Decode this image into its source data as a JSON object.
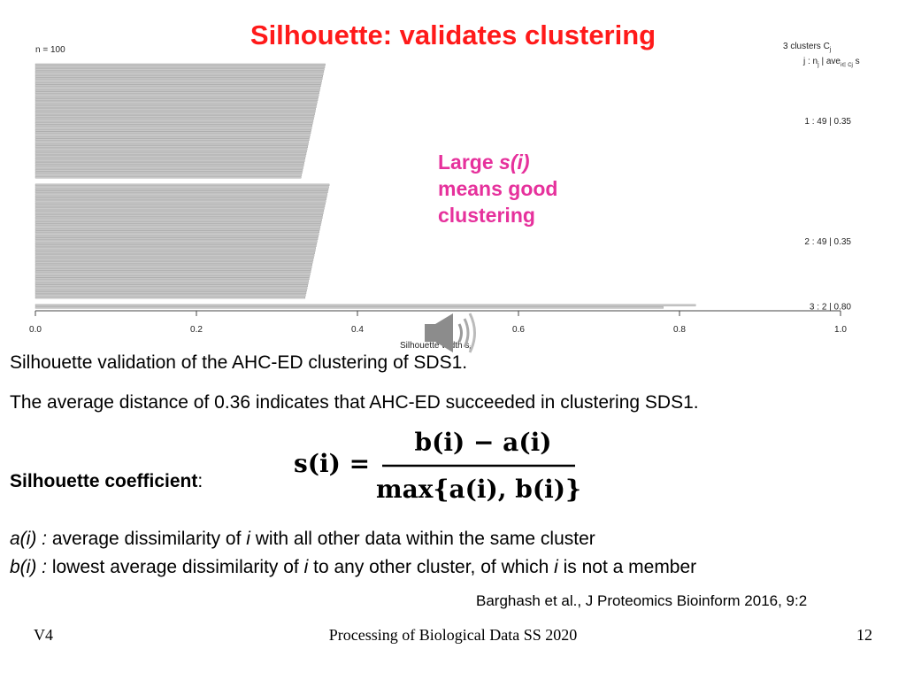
{
  "slide": {
    "title": "Silhouette: validates clustering",
    "callout": {
      "prefix": "Large ",
      "emph": "s(i)",
      "line2": "means good",
      "line3": "clustering"
    },
    "caption1": "Silhouette validation of the AHC-ED clustering of SDS1.",
    "caption2": "The average distance of 0.36 indicates that AHC-ED succeeded in clustering SDS1.",
    "coef_label": "Silhouette coefficient",
    "coef_colon": ":",
    "formula": {
      "lhs": "s(i) =",
      "numerator": "b(i) − a(i)",
      "denominator": "max{a(i), b(i)}"
    },
    "def_a": {
      "term": "a(i) :",
      "text1": " average dissimilarity of ",
      "var": "i",
      "text2": " with all other data within the same cluster"
    },
    "def_b": {
      "term": "b(i) :",
      "text1": " lowest average dissimilarity of ",
      "var": "i",
      "text2": " to any other cluster, of which ",
      "var2": "i",
      "text3": " is not a member"
    },
    "reference": "Barghash et al., J Proteomics Bioinform 2016, 9:2",
    "footer_left": "V4",
    "footer_center": "Processing of Biological Data SS 2020",
    "footer_right": "12",
    "speaker_icon": "speaker-icon"
  },
  "chart_data": {
    "type": "bar",
    "orientation": "horizontal",
    "n_label": "n = 100",
    "legend_header1": "3  clusters  C",
    "legend_header1_sub": "j",
    "legend_header2": "j :  n",
    "legend_header2_sub": "j",
    "legend_header2_rest": " | ave",
    "legend_header2_sub2": "i∈ Cj",
    "legend_header2_tail": " s",
    "xlabel": "Silhouette width s",
    "xlabel_sub": "i",
    "xlim": [
      0.0,
      1.0
    ],
    "xticks": [
      "0.0",
      "0.2",
      "0.4",
      "0.6",
      "0.8",
      "1.0"
    ],
    "clusters": [
      {
        "label": "1 :  49  |  0.35",
        "n": 49,
        "ave": 0.35,
        "max": 0.36,
        "min": 0.33
      },
      {
        "label": "2 :  49  |  0.35",
        "n": 49,
        "ave": 0.35,
        "max": 0.365,
        "min": 0.335
      },
      {
        "label": "3 :  2  |  0.80",
        "n": 2,
        "ave": 0.8,
        "values": [
          0.82,
          0.78
        ]
      }
    ],
    "colors": {
      "bar": "#c8c8c8",
      "bar_edge": "#9a9a9a",
      "axis": "#444444"
    }
  }
}
